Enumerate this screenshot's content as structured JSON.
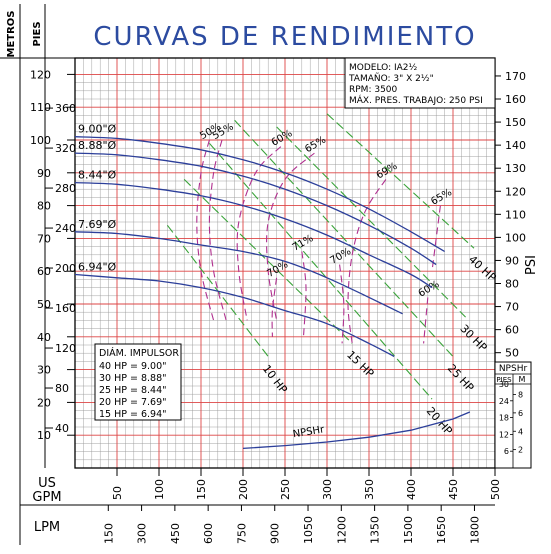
{
  "chart_data": {
    "type": "line",
    "title": "CURVAS DE RENDIMIENTO",
    "axes": {
      "x_primary": {
        "label": "US GPM",
        "min": 0,
        "max": 500,
        "ticks": [
          50,
          100,
          150,
          200,
          250,
          300,
          350,
          400,
          450,
          500
        ]
      },
      "x_secondary": {
        "label": "LPM",
        "ticks": [
          150,
          300,
          450,
          600,
          750,
          900,
          1050,
          1200,
          1350,
          1500,
          1650,
          1800
        ]
      },
      "y_left_meters": {
        "label": "METROS",
        "min": 0,
        "max": 125,
        "ticks": [
          10,
          20,
          30,
          40,
          50,
          60,
          70,
          80,
          90,
          100,
          110,
          120
        ]
      },
      "y_left_feet": {
        "label": "PIES",
        "ticks": [
          40,
          80,
          120,
          160,
          200,
          240,
          280,
          320,
          360
        ]
      },
      "y_right_psi": {
        "label": "PSI",
        "min": 0,
        "max": 175,
        "ticks": [
          50,
          60,
          70,
          80,
          90,
          100,
          110,
          120,
          130,
          140,
          150,
          160,
          170
        ]
      }
    },
    "info_box": {
      "model": "MODELO: IA2½",
      "size": "TAMAÑO: 3\" X 2½\"",
      "rpm": "RPM: 3500",
      "max_pressure": "MÁX. PRES. TRABAJO: 250 PSI"
    },
    "impeller_box": {
      "title": "DIÁM. IMPULSOR",
      "rows": [
        "40 HP = 9.00\"",
        "30 HP = 8.88\"",
        "25 HP = 8.44\"",
        "20 HP = 7.69\"",
        "15 HP = 6.94\""
      ]
    },
    "npsh_box": {
      "title": "NPSHr",
      "col1": "PIES",
      "col2": "M",
      "feet_ticks": [
        6,
        12,
        18,
        24,
        30
      ],
      "meter_ticks": [
        2,
        4,
        6,
        8
      ]
    },
    "head_curves": [
      {
        "name": "9.00\"Ø",
        "x": [
          0,
          50,
          100,
          150,
          200,
          250,
          300,
          350,
          400,
          440
        ],
        "y": [
          101,
          100.5,
          99,
          97,
          94,
          90,
          85,
          79,
          72,
          66
        ]
      },
      {
        "name": "8.88\"Ø",
        "x": [
          0,
          50,
          100,
          150,
          200,
          250,
          300,
          350,
          400,
          430
        ],
        "y": [
          96,
          95.5,
          94,
          92,
          89,
          85,
          80,
          74,
          67,
          62
        ]
      },
      {
        "name": "8.44\"Ø",
        "x": [
          0,
          50,
          100,
          150,
          200,
          250,
          300,
          350,
          400,
          425
        ],
        "y": [
          87,
          86.5,
          85,
          83,
          80,
          76,
          71,
          65,
          59,
          55
        ]
      },
      {
        "name": "7.69\"Ø",
        "x": [
          0,
          50,
          100,
          150,
          200,
          250,
          300,
          350,
          390
        ],
        "y": [
          72,
          71.5,
          70,
          68,
          66,
          63,
          58,
          52,
          47
        ]
      },
      {
        "name": "6.94\"Ø",
        "x": [
          0,
          50,
          100,
          150,
          200,
          250,
          300,
          350,
          380
        ],
        "y": [
          59,
          58,
          57,
          55,
          52,
          48,
          44,
          38,
          34
        ]
      }
    ],
    "npsh_curve": {
      "name": "NPSHr",
      "x": [
        200,
        250,
        300,
        350,
        400,
        450,
        470
      ],
      "y": [
        7,
        8,
        9.3,
        11,
        13.5,
        17.5,
        20
      ]
    },
    "hp_lines": [
      {
        "name": "10 HP",
        "x": [
          110,
          230
        ],
        "y": [
          74,
          34
        ]
      },
      {
        "name": "15 HP",
        "x": [
          130,
          330
        ],
        "y": [
          88,
          38
        ]
      },
      {
        "name": "20 HP",
        "x": [
          160,
          425
        ],
        "y": [
          99,
          21
        ]
      },
      {
        "name": "25 HP",
        "x": [
          190,
          450
        ],
        "y": [
          106,
          34
        ]
      },
      {
        "name": "30 HP",
        "x": [
          240,
          465
        ],
        "y": [
          104,
          46
        ]
      },
      {
        "name": "40 HP",
        "x": [
          300,
          475
        ],
        "y": [
          108,
          67
        ]
      }
    ],
    "efficiency_curves": [
      {
        "name": "50%",
        "x": [
          160,
          150,
          145,
          150,
          165
        ],
        "y": [
          100,
          90,
          75,
          60,
          45
        ]
      },
      {
        "name": "55%",
        "x": [
          175,
          165,
          160,
          165,
          180
        ],
        "y": [
          100,
          90,
          75,
          60,
          45
        ]
      },
      {
        "name": "60%",
        "x": [
          245,
          215,
          195,
          195,
          205
        ],
        "y": [
          98,
          90,
          75,
          60,
          45
        ]
      },
      {
        "name": "65%",
        "x": [
          285,
          250,
          230,
          230,
          240
        ],
        "y": [
          96,
          88,
          75,
          60,
          45
        ]
      },
      {
        "name": "69%",
        "x": [
          370,
          345,
          330,
          325,
          330
        ],
        "y": [
          88,
          78,
          65,
          50,
          38
        ]
      },
      {
        "name": "71%",
        "x": [
          270,
          275,
          272
        ],
        "y": [
          66,
          55,
          40
        ]
      },
      {
        "name": "70%",
        "x": [
          240,
          235,
          235
        ],
        "y": [
          58,
          48,
          40
        ]
      },
      {
        "name": "70%",
        "x": [
          315,
          320,
          318
        ],
        "y": [
          62,
          50,
          38
        ]
      },
      {
        "name": "65%",
        "x": [
          435,
          425
        ],
        "y": [
          80,
          60
        ]
      },
      {
        "name": "60%",
        "x": [
          420,
          415
        ],
        "y": [
          52,
          38
        ]
      }
    ]
  }
}
